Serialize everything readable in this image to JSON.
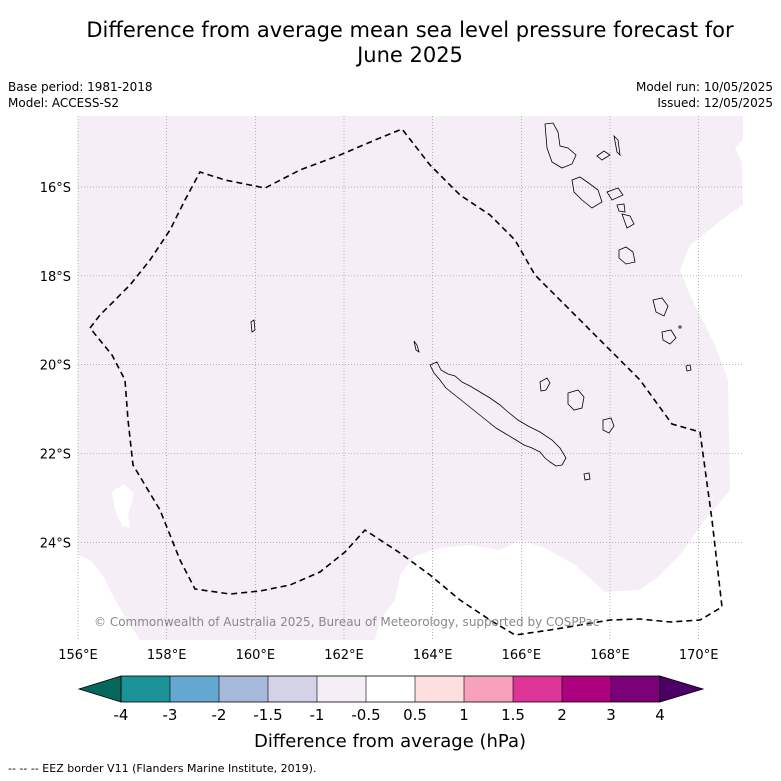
{
  "title_line1": "Difference from average mean sea level pressure forecast for",
  "title_line2": "June 2025",
  "base_period": "Base period: 1981-2018",
  "model": "Model: ACCESS-S2",
  "model_run": "Model run: 10/05/2025",
  "issued": "Issued: 12/05/2025",
  "copyright": "© Commonwealth of Australia 2025, Bureau of Meteorology, supported by COSPPac",
  "footnote": "--  --  -- EEZ border V11 (Flanders Marine Institute, 2019).",
  "map": {
    "lon_ticks": [
      "156°E",
      "158°E",
      "160°E",
      "162°E",
      "164°E",
      "166°E",
      "168°E",
      "170°E"
    ],
    "lat_ticks": [
      "16°S",
      "18°S",
      "20°S",
      "22°S",
      "24°S"
    ],
    "lon_range": [
      156,
      171
    ],
    "lat_range": [
      -26.2,
      -14.4
    ],
    "fill_colors": {
      "background": "#f5eef6",
      "neutral": "#ffffff"
    }
  },
  "colorbar": {
    "title": "Difference from average (hPa)",
    "labels": [
      "-4",
      "-3",
      "-2",
      "-1.5",
      "-1",
      "-0.5",
      "0.5",
      "1",
      "1.5",
      "2",
      "3",
      "4"
    ],
    "colors": [
      "#1a9298",
      "#63a8d0",
      "#a6b9da",
      "#d3d2e6",
      "#f5eef6",
      "#ffffff",
      "#fddfdf",
      "#f8a1bb",
      "#dd3498",
      "#ad0180",
      "#7b0178"
    ],
    "under_color": "#05665a",
    "over_color": "#4a0065"
  }
}
